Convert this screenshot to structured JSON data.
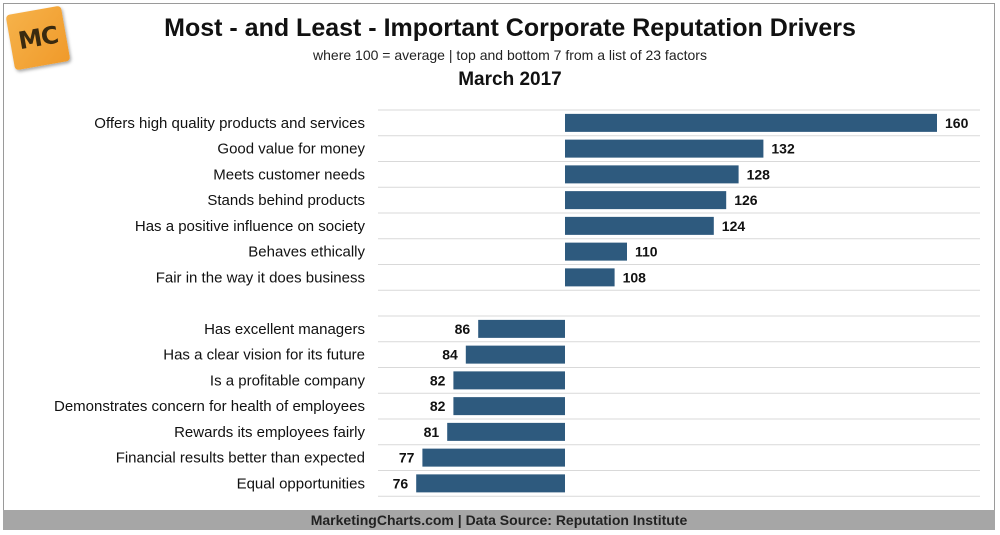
{
  "header": {
    "logo_text": "MC",
    "title": "Most - and Least - Important Corporate Reputation Drivers",
    "subtitle": "where 100 = average | top and bottom 7 from a list of 23 factors",
    "period": "March 2017"
  },
  "footer": {
    "source": "MarketingCharts.com | Data Source: Reputation Institute"
  },
  "colors": {
    "bar": "#2e5a7e",
    "gridline": "#d9d9d9",
    "footer_bg": "#a6a6a6"
  },
  "chart_data": {
    "type": "bar",
    "orientation": "horizontal",
    "baseline": 100,
    "groups": [
      {
        "categories": [
          "Offers high quality products and services",
          "Good value for money",
          "Meets customer needs",
          "Stands behind products",
          "Has a positive influence on society",
          "Behaves ethically",
          "Fair in the way it does business"
        ],
        "values": [
          160,
          132,
          128,
          126,
          124,
          110,
          108
        ]
      },
      {
        "categories": [
          "Has excellent managers",
          "Has a clear vision for its future",
          "Is a profitable company",
          "Demonstrates concern for health of employees",
          "Rewards its employees fairly",
          "Financial results better than expected",
          "Equal opportunities"
        ],
        "values": [
          86,
          84,
          82,
          82,
          81,
          77,
          76
        ]
      }
    ],
    "data_labels": true,
    "grid": true
  }
}
